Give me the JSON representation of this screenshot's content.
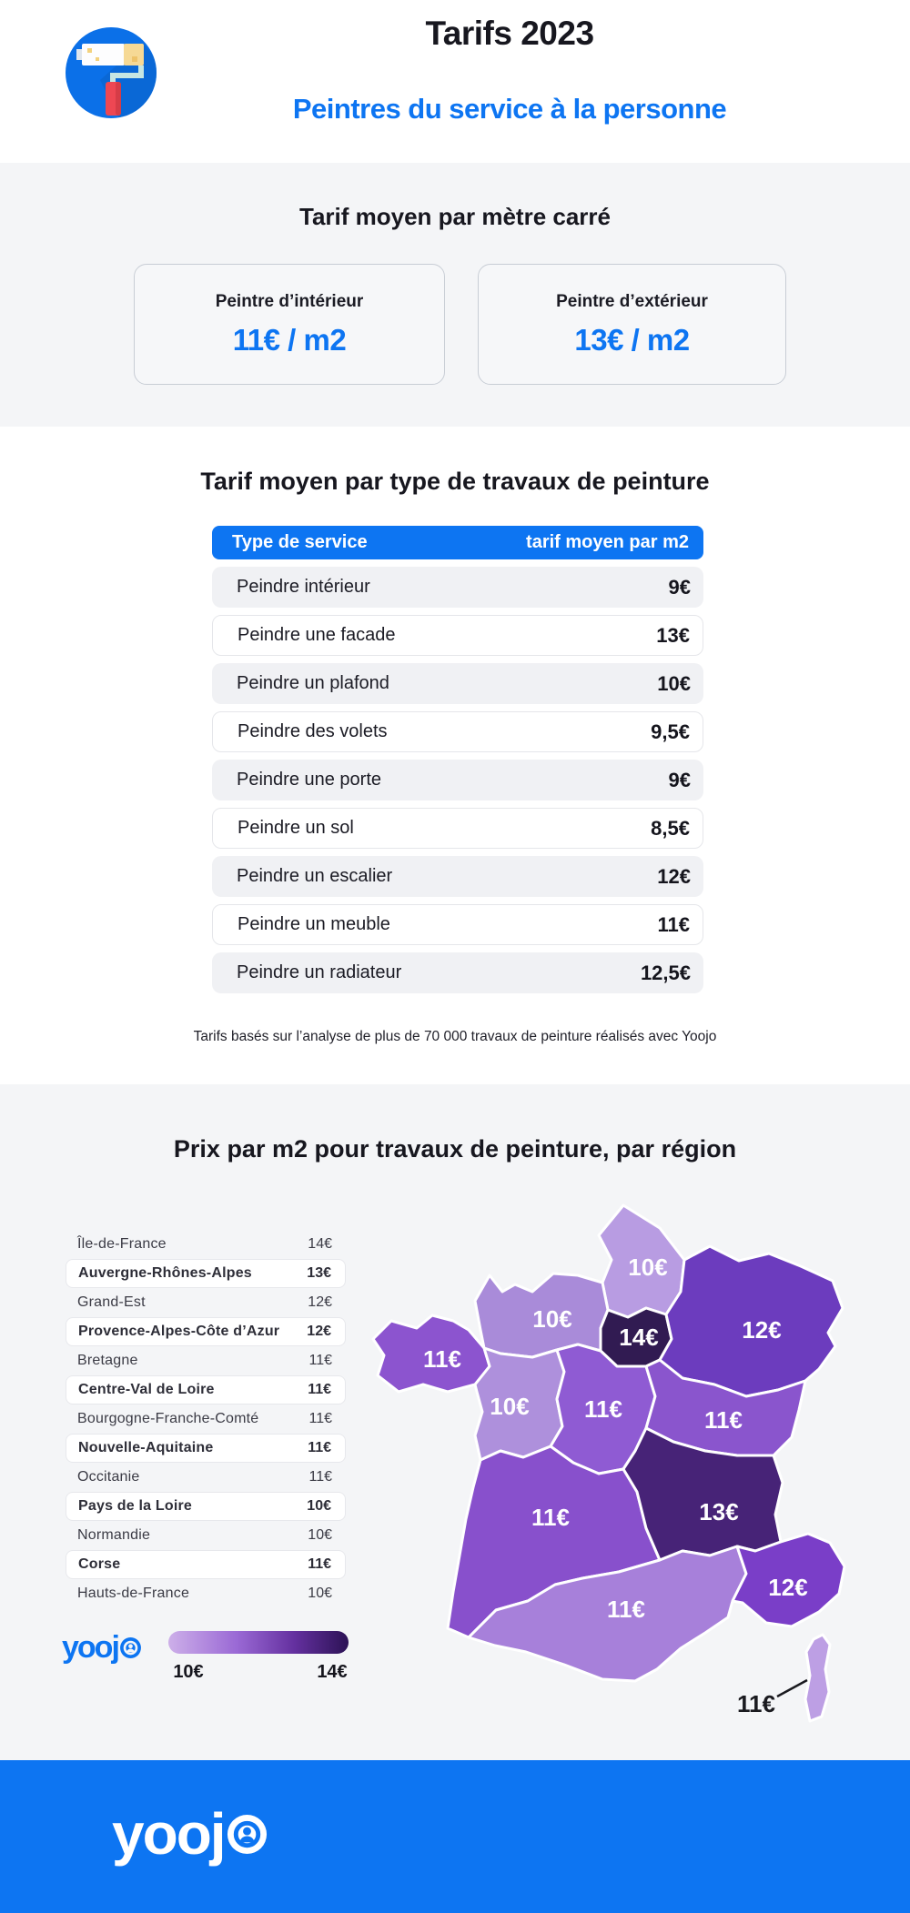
{
  "header": {
    "title": "Tarifs 2023",
    "subtitle": "Peintres du service à la personne"
  },
  "section_m2": {
    "heading": "Tarif moyen par mètre carré",
    "cards": [
      {
        "label": "Peintre d’intérieur",
        "price": "11€ / m2"
      },
      {
        "label": "Peintre d’extérieur",
        "price": "13€ / m2"
      }
    ]
  },
  "section_table": {
    "heading": "Tarif moyen par type de travaux de peinture",
    "columns": [
      "Type de service",
      "tarif moyen par m2"
    ],
    "rows": [
      [
        "Peindre intérieur",
        "9€"
      ],
      [
        "Peindre une facade",
        "13€"
      ],
      [
        "Peindre un plafond",
        "10€"
      ],
      [
        "Peindre des volets",
        "9,5€"
      ],
      [
        "Peindre une porte",
        "9€"
      ],
      [
        "Peindre un sol",
        "8,5€"
      ],
      [
        "Peindre un escalier",
        "12€"
      ],
      [
        "Peindre un meuble",
        "11€"
      ],
      [
        "Peindre un radiateur",
        "12,5€"
      ]
    ],
    "footnote": "Tarifs basés sur l’analyse de plus de 70 000 travaux de peinture réalisés avec Yoojo"
  },
  "section_map": {
    "heading": "Prix par m2 pour travaux de peinture, par région",
    "regions": [
      {
        "name": "Île-de-France",
        "price": "14€",
        "highlighted": false
      },
      {
        "name": "Auvergne-Rhônes-Alpes",
        "price": "13€",
        "highlighted": true
      },
      {
        "name": "Grand-Est",
        "price": "12€",
        "highlighted": false
      },
      {
        "name": "Provence-Alpes-Côte d’Azur",
        "price": "12€",
        "highlighted": true
      },
      {
        "name": "Bretagne",
        "price": "11€",
        "highlighted": false
      },
      {
        "name": "Centre-Val de Loire",
        "price": "11€",
        "highlighted": true
      },
      {
        "name": "Bourgogne-Franche-Comté",
        "price": "11€",
        "highlighted": false
      },
      {
        "name": "Nouvelle-Aquitaine",
        "price": "11€",
        "highlighted": true
      },
      {
        "name": "Occitanie",
        "price": "11€",
        "highlighted": false
      },
      {
        "name": "Pays de la Loire",
        "price": "10€",
        "highlighted": true
      },
      {
        "name": "Normandie",
        "price": "10€",
        "highlighted": false
      },
      {
        "name": "Corse",
        "price": "11€",
        "highlighted": true
      },
      {
        "name": "Hauts-de-France",
        "price": "10€",
        "highlighted": false
      }
    ],
    "map_regions": [
      {
        "id": "hauts-de-france",
        "name": "Hauts-de-France",
        "price": "10€",
        "fill": "#b89ce2",
        "label_dark": false
      },
      {
        "id": "normandie",
        "name": "Normandie",
        "price": "10€",
        "fill": "#a98bd9",
        "label_dark": false
      },
      {
        "id": "ile-de-france",
        "name": "Île-de-France",
        "price": "14€",
        "fill": "#311b52",
        "label_dark": false
      },
      {
        "id": "grand-est",
        "name": "Grand-Est",
        "price": "12€",
        "fill": "#6c3cbe",
        "label_dark": false
      },
      {
        "id": "bretagne",
        "name": "Bretagne",
        "price": "11€",
        "fill": "#8c54cf",
        "label_dark": false
      },
      {
        "id": "pays-de-la-loire",
        "name": "Pays de la Loire",
        "price": "10€",
        "fill": "#ae90dc",
        "label_dark": false
      },
      {
        "id": "centre-val-de-loire",
        "name": "Centre-Val de Loire",
        "price": "11€",
        "fill": "#8f5bd3",
        "label_dark": false
      },
      {
        "id": "bourgogne-franche-comte",
        "name": "Bourgogne-Franche-Comté",
        "price": "11€",
        "fill": "#8a55cd",
        "label_dark": false
      },
      {
        "id": "nouvelle-aquitaine",
        "name": "Nouvelle-Aquitaine",
        "price": "11€",
        "fill": "#8850cc",
        "label_dark": false
      },
      {
        "id": "auvergne-rhone-alpes",
        "name": "Auvergne-Rhônes-Alpes",
        "price": "13€",
        "fill": "#472377",
        "label_dark": false
      },
      {
        "id": "occitanie",
        "name": "Occitanie",
        "price": "11€",
        "fill": "#a780da",
        "label_dark": false
      },
      {
        "id": "paca",
        "name": "Provence-Alpes-Côte d’Azur",
        "price": "12€",
        "fill": "#7a3ec8",
        "label_dark": false
      },
      {
        "id": "corse",
        "name": "Corse",
        "price": "11€",
        "fill": "#bd9fe4",
        "label_dark": true
      }
    ],
    "legend": {
      "brand": "yoojo",
      "min": "10€",
      "max": "14€",
      "gradient": [
        "#cdafe9",
        "#9a69d5",
        "#64309f",
        "#2c1255"
      ]
    }
  },
  "footer": {
    "brand": "yoojo"
  },
  "colors": {
    "brand_blue": "#0d75f2",
    "section_gray": "#f4f5f7",
    "dark_text": "#17171f"
  },
  "chart_data": [
    {
      "type": "table",
      "title": "Tarif moyen par type de travaux de peinture",
      "columns": [
        "Type de service",
        "tarif moyen par m2"
      ],
      "rows": [
        [
          "Peindre intérieur",
          9
        ],
        [
          "Peindre une facade",
          13
        ],
        [
          "Peindre un plafond",
          10
        ],
        [
          "Peindre des volets",
          9.5
        ],
        [
          "Peindre une porte",
          9
        ],
        [
          "Peindre un sol",
          8.5
        ],
        [
          "Peindre un escalier",
          12
        ],
        [
          "Peindre un meuble",
          11
        ],
        [
          "Peindre un radiateur",
          12.5
        ]
      ],
      "unit": "€/m2"
    },
    {
      "type": "heatmap",
      "subtype": "choropleth-france-regions",
      "title": "Prix par m2 pour travaux de peinture, par région",
      "unit": "€/m2",
      "range": [
        10,
        14
      ],
      "categories": [
        "Île-de-France",
        "Auvergne-Rhônes-Alpes",
        "Grand-Est",
        "Provence-Alpes-Côte d’Azur",
        "Bretagne",
        "Centre-Val de Loire",
        "Bourgogne-Franche-Comté",
        "Nouvelle-Aquitaine",
        "Occitanie",
        "Pays de la Loire",
        "Normandie",
        "Corse",
        "Hauts-de-France"
      ],
      "values": [
        14,
        13,
        12,
        12,
        11,
        11,
        11,
        11,
        11,
        10,
        10,
        11,
        10
      ],
      "legend_position": "bottom-left",
      "kpi_cards": [
        {
          "label": "Peintre d’intérieur",
          "value": 11,
          "unit": "€/m2"
        },
        {
          "label": "Peintre d’extérieur",
          "value": 13,
          "unit": "€/m2"
        }
      ]
    }
  ]
}
